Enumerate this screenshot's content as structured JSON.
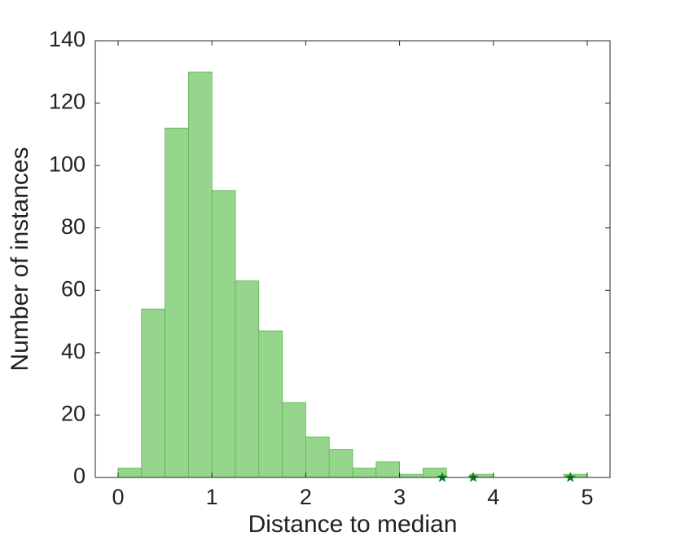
{
  "chart_data": {
    "type": "histogram",
    "xlabel": "Distance to median",
    "ylabel": "Number of instances",
    "bins": [
      0,
      0.25,
      0.5,
      0.75,
      1,
      1.25,
      1.5,
      1.75,
      2,
      2.25,
      2.5,
      2.75,
      3,
      3.25,
      3.5,
      3.75,
      4,
      4.25,
      4.5,
      4.75,
      5
    ],
    "counts": [
      3,
      54,
      112,
      130,
      92,
      63,
      47,
      24,
      13,
      9,
      3,
      5,
      1,
      3,
      0,
      1,
      0,
      0,
      0,
      1
    ],
    "color": "#96d68c",
    "edge_color": "#5cb451",
    "points": {
      "x": [
        3.455,
        3.785,
        4.82
      ],
      "y": [
        0,
        0,
        0
      ],
      "color": "#10821e"
    },
    "xlim": [
      -0.243,
      5.243
    ],
    "ylim": [
      0,
      140
    ],
    "xticks": [
      0,
      1,
      2,
      3,
      4,
      5
    ],
    "yticks": [
      0,
      20,
      40,
      60,
      80,
      100,
      120,
      140
    ]
  }
}
